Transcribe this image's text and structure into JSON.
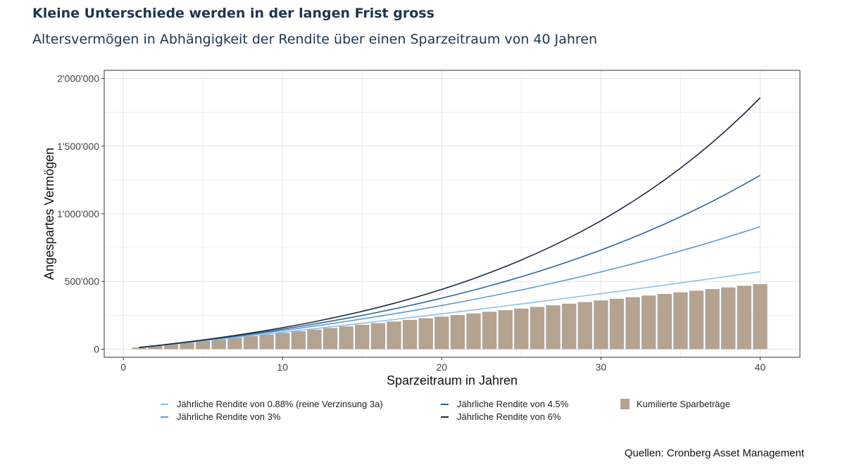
{
  "header": {
    "title": "Kleine Unterschiede werden in der langen Frist gross",
    "subtitle": "Altersvermögen in Abhängigkeit der Rendite über einen Sparzeitraum von 40 Jahren"
  },
  "source": "Quellen: Cronberg Asset Management",
  "chart_data": {
    "type": "line",
    "title": "Kleine Unterschiede werden in der langen Frist gross",
    "xlabel": "Sparzeitraum in Jahren",
    "ylabel": "Angespartes Vermögen",
    "xlim": [
      -1.2,
      42.5
    ],
    "ylim": [
      -60000,
      2060000
    ],
    "x_ticks": [
      0,
      10,
      20,
      30,
      40
    ],
    "x_tick_labels": [
      "0",
      "10",
      "20",
      "30",
      "40"
    ],
    "y_ticks": [
      0,
      500000,
      1000000,
      1500000,
      2000000
    ],
    "y_tick_labels": [
      "0",
      "500'000",
      "1'000'000",
      "1'500'000",
      "2'000'000"
    ],
    "grid": true,
    "legend_position": "bottom",
    "x": [
      1,
      2,
      3,
      4,
      5,
      6,
      7,
      8,
      9,
      10,
      11,
      12,
      13,
      14,
      15,
      16,
      17,
      18,
      19,
      20,
      21,
      22,
      23,
      24,
      25,
      26,
      27,
      28,
      29,
      30,
      31,
      32,
      33,
      34,
      35,
      36,
      37,
      38,
      39,
      40
    ],
    "bars": {
      "name": "Kumilierte Sparbeträge",
      "color": "#b3a390",
      "values": [
        12000,
        24000,
        36000,
        48000,
        60000,
        72000,
        84000,
        96000,
        108000,
        120000,
        132000,
        144000,
        156000,
        168000,
        180000,
        192000,
        204000,
        216000,
        228000,
        240000,
        252000,
        264000,
        276000,
        288000,
        300000,
        312000,
        324000,
        336000,
        348000,
        360000,
        372000,
        384000,
        396000,
        408000,
        420000,
        432000,
        444000,
        456000,
        468000,
        480000
      ]
    },
    "series": [
      {
        "name": "Jährliche Rendite von 0.88% (reine Verzinsung 3a)",
        "color": "#93bfe6",
        "values": [
          12000,
          24106,
          36318,
          48638,
          61066,
          73603,
          86251,
          99010,
          111881,
          124866,
          137965,
          151179,
          164509,
          177957,
          191523,
          205208,
          219014,
          232941,
          246991,
          261165,
          275463,
          289887,
          304438,
          319117,
          333925,
          348864,
          363934,
          379137,
          394473,
          409944,
          425552,
          441297,
          457180,
          473203,
          489367,
          505673,
          522123,
          538718,
          555459,
          572347
        ]
      },
      {
        "name": "Jährliche Rendite von 3%",
        "color": "#5f9bd0",
        "values": [
          12000,
          24360,
          37090,
          50200,
          63710,
          77620,
          91950,
          106710,
          121910,
          137570,
          153690,
          170300,
          187410,
          205040,
          223190,
          241880,
          261140,
          280970,
          301400,
          322440,
          344120,
          366440,
          389440,
          413120,
          437510,
          462640,
          488520,
          515170,
          542630,
          570900,
          600030,
          630030,
          660940,
          692760,
          725540,
          759310,
          794090,
          829910,
          866810,
          904820
        ]
      },
      {
        "name": "Jährliche Rendite von 4.5%",
        "color": "#2f6595",
        "values": [
          12000,
          24540,
          37640,
          51340,
          65650,
          80600,
          96230,
          112560,
          129630,
          147460,
          166090,
          185570,
          205920,
          227190,
          249410,
          272630,
          296900,
          322260,
          348760,
          376460,
          405400,
          435640,
          467240,
          500270,
          534780,
          570850,
          608540,
          647920,
          689080,
          732080,
          777030,
          824000,
          873070,
          924360,
          977960,
          1033970,
          1092500,
          1153660,
          1217570,
          1284360
        ]
      },
      {
        "name": "Jährliche Rendite von 6%",
        "color": "#1b2b42",
        "values": [
          12000,
          24720,
          38200,
          52500,
          67650,
          83700,
          100730,
          118770,
          137900,
          158170,
          179660,
          202440,
          226590,
          252180,
          279310,
          308070,
          338550,
          370870,
          405120,
          441430,
          479910,
          520710,
          563950,
          609790,
          658370,
          709880,
          764470,
          822340,
          883680,
          948700,
          1017620,
          1090680,
          1168120,
          1250210,
          1337220,
          1429450,
          1527220,
          1630850,
          1740700,
          1857140
        ]
      }
    ]
  }
}
